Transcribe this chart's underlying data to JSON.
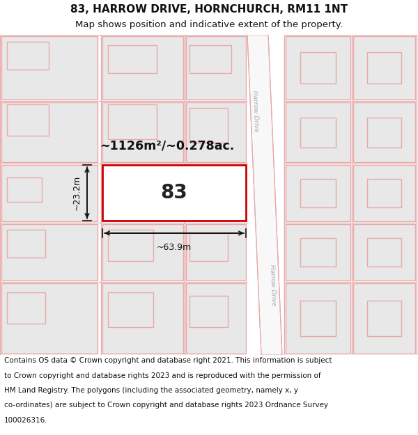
{
  "title_line1": "83, HARROW DRIVE, HORNCHURCH, RM11 1NT",
  "title_line2": "Map shows position and indicative extent of the property.",
  "footer_lines": [
    "Contains OS data © Crown copyright and database right 2021. This information is subject",
    "to Crown copyright and database rights 2023 and is reproduced with the permission of",
    "HM Land Registry. The polygons (including the associated geometry, namely x, y",
    "co-ordinates) are subject to Crown copyright and database rights 2023 Ordnance Survey",
    "100026316."
  ],
  "area_label": "~1126m²/~0.278ac.",
  "number_label": "83",
  "dim_width": "~63.9m",
  "dim_height": "~23.2m",
  "road_label": "Harrow Drive",
  "bg_color": "#ffffff",
  "plot_fill": "#e8e8e8",
  "plot_outline": "#e8a8a8",
  "street_line": "#e8a8a8",
  "highlight_fill": "#ffffff",
  "highlight_outline": "#cc0000",
  "title_fontsize": 11,
  "subtitle_fontsize": 9.5,
  "footer_fontsize": 7.5,
  "label_color": "#111111",
  "road_text_color": "#aaaaaa"
}
